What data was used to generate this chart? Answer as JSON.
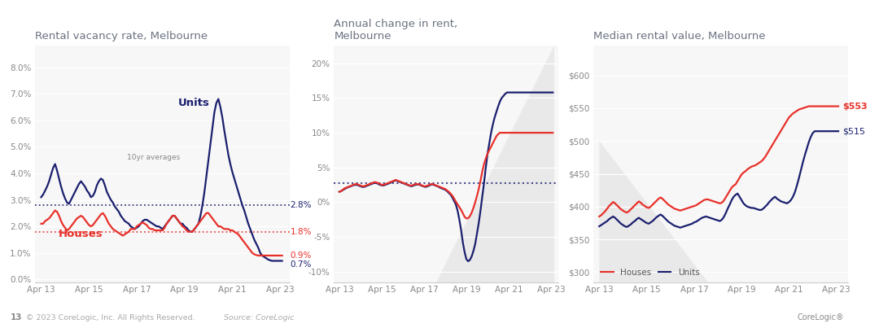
{
  "bg_color": "#ffffff",
  "chart_bg": "#f7f7f7",
  "title_color": "#6b7280",
  "navy": "#1a1f6e",
  "red": "#e8302a",
  "grey_line": "#cccccc",
  "chart1": {
    "title": "Rental vacancy rate, Melbourne",
    "ylim": [
      -0.001,
      0.088
    ],
    "yticks": [
      0.0,
      0.01,
      0.02,
      0.03,
      0.04,
      0.05,
      0.06,
      0.07,
      0.08
    ],
    "ytick_labels": [
      "0.0%",
      "1.0%",
      "2.0%",
      "3.0%",
      "4.0%",
      "5.0%",
      "6.0%",
      "7.0%",
      "8.0%"
    ],
    "avg_units": 0.028,
    "avg_houses": 0.018,
    "label_avg_units": "2.8%",
    "label_avg_houses": "1.8%",
    "label_end_red": "0.9%",
    "label_end_navy": "0.7%"
  },
  "chart2": {
    "title": "Annual change in rent,\nMelbourne",
    "ylim": [
      -0.115,
      0.225
    ],
    "yticks": [
      -0.1,
      -0.05,
      0.0,
      0.05,
      0.1,
      0.15,
      0.2
    ],
    "ytick_labels": [
      "-10%",
      "-5%",
      "0%",
      "5%",
      "10%",
      "15%",
      "20%"
    ],
    "avg_line": 0.028
  },
  "chart3": {
    "title": "Median rental value, Melbourne",
    "ylim": [
      285,
      645
    ],
    "yticks": [
      300,
      350,
      400,
      450,
      500,
      550,
      600
    ],
    "ytick_labels": [
      "$300",
      "$350",
      "$400",
      "$450",
      "$500",
      "$550",
      "$600"
    ],
    "label_houses_end": "$553",
    "label_units_end": "$515"
  },
  "x_ticks": [
    0,
    24,
    48,
    72,
    96,
    120
  ],
  "x_tick_labels": [
    "Apr 13",
    "Apr 15",
    "Apr 17",
    "Apr 19",
    "Apr 21",
    "Apr 23"
  ],
  "n_points": 122,
  "vac_units": [
    3.1,
    3.2,
    3.35,
    3.5,
    3.7,
    3.95,
    4.2,
    4.35,
    4.1,
    3.8,
    3.5,
    3.25,
    3.05,
    2.9,
    2.85,
    3.0,
    3.15,
    3.3,
    3.45,
    3.6,
    3.7,
    3.6,
    3.5,
    3.35,
    3.25,
    3.1,
    3.15,
    3.3,
    3.55,
    3.7,
    3.8,
    3.75,
    3.55,
    3.3,
    3.15,
    3.0,
    2.9,
    2.75,
    2.65,
    2.55,
    2.4,
    2.3,
    2.2,
    2.15,
    2.1,
    2.0,
    1.95,
    1.9,
    1.95,
    2.0,
    2.1,
    2.2,
    2.25,
    2.25,
    2.2,
    2.15,
    2.1,
    2.05,
    2.0,
    2.0,
    1.95,
    1.9,
    2.0,
    2.1,
    2.2,
    2.3,
    2.4,
    2.4,
    2.3,
    2.2,
    2.1,
    2.1,
    2.0,
    1.95,
    1.85,
    1.8,
    1.8,
    1.9,
    2.0,
    2.1,
    2.4,
    2.8,
    3.3,
    3.9,
    4.5,
    5.1,
    5.7,
    6.3,
    6.65,
    6.8,
    6.5,
    6.1,
    5.6,
    5.15,
    4.7,
    4.35,
    4.05,
    3.8,
    3.55,
    3.3,
    3.05,
    2.8,
    2.6,
    2.35,
    2.1,
    1.9,
    1.7,
    1.5,
    1.35,
    1.2,
    1.0,
    0.9,
    0.85,
    0.8,
    0.75,
    0.72,
    0.7,
    0.7,
    0.7,
    0.7,
    0.7,
    0.7
  ],
  "vac_houses": [
    2.1,
    2.1,
    2.2,
    2.25,
    2.3,
    2.4,
    2.5,
    2.6,
    2.55,
    2.4,
    2.2,
    2.05,
    1.95,
    1.85,
    1.9,
    2.0,
    2.1,
    2.2,
    2.3,
    2.35,
    2.4,
    2.35,
    2.25,
    2.15,
    2.05,
    2.0,
    2.05,
    2.15,
    2.25,
    2.35,
    2.45,
    2.5,
    2.4,
    2.25,
    2.1,
    2.0,
    1.9,
    1.85,
    1.8,
    1.75,
    1.7,
    1.65,
    1.7,
    1.75,
    1.8,
    1.9,
    1.9,
    1.9,
    2.0,
    2.05,
    2.1,
    2.15,
    2.1,
    2.05,
    1.95,
    1.9,
    1.9,
    1.85,
    1.85,
    1.85,
    1.85,
    1.85,
    1.95,
    2.1,
    2.2,
    2.3,
    2.4,
    2.4,
    2.3,
    2.2,
    2.1,
    2.0,
    1.95,
    1.85,
    1.8,
    1.8,
    1.8,
    1.9,
    2.0,
    2.1,
    2.2,
    2.3,
    2.4,
    2.5,
    2.5,
    2.4,
    2.3,
    2.2,
    2.1,
    2.0,
    2.0,
    1.95,
    1.9,
    1.9,
    1.9,
    1.85,
    1.85,
    1.8,
    1.75,
    1.7,
    1.6,
    1.5,
    1.4,
    1.3,
    1.2,
    1.1,
    1.0,
    0.95,
    0.92,
    0.9,
    0.9,
    0.9,
    0.9,
    0.9,
    0.9,
    0.9,
    0.9,
    0.9,
    0.9,
    0.9,
    0.9,
    0.9
  ],
  "rent_units": [
    1.5,
    1.6,
    1.75,
    1.9,
    2.05,
    2.15,
    2.25,
    2.35,
    2.45,
    2.5,
    2.5,
    2.4,
    2.3,
    2.2,
    2.2,
    2.3,
    2.4,
    2.5,
    2.6,
    2.7,
    2.8,
    2.75,
    2.65,
    2.5,
    2.45,
    2.4,
    2.5,
    2.6,
    2.7,
    2.8,
    2.95,
    3.05,
    3.15,
    3.05,
    2.95,
    2.85,
    2.75,
    2.65,
    2.55,
    2.45,
    2.35,
    2.3,
    2.4,
    2.5,
    2.55,
    2.55,
    2.45,
    2.35,
    2.25,
    2.2,
    2.3,
    2.4,
    2.55,
    2.55,
    2.45,
    2.35,
    2.25,
    2.1,
    2.0,
    1.9,
    1.8,
    1.6,
    1.35,
    1.1,
    0.7,
    0.2,
    -0.3,
    -1.2,
    -2.5,
    -4.0,
    -5.8,
    -7.2,
    -8.2,
    -8.5,
    -8.3,
    -7.8,
    -7.0,
    -6.0,
    -4.5,
    -3.0,
    -1.2,
    0.8,
    2.8,
    5.0,
    7.0,
    8.5,
    10.0,
    11.2,
    12.2,
    13.0,
    13.8,
    14.5,
    15.0,
    15.3,
    15.6,
    15.8,
    15.8,
    15.8,
    15.8,
    15.8,
    15.8,
    15.8,
    15.8,
    15.8,
    15.8,
    15.8,
    15.8,
    15.8,
    15.8,
    15.8,
    15.8,
    15.8,
    15.8,
    15.8,
    15.8,
    15.8,
    15.8,
    15.8,
    15.8,
    15.8,
    15.8,
    15.8
  ],
  "rent_houses": [
    1.5,
    1.6,
    1.8,
    2.0,
    2.1,
    2.2,
    2.3,
    2.4,
    2.5,
    2.6,
    2.6,
    2.5,
    2.4,
    2.3,
    2.3,
    2.4,
    2.5,
    2.6,
    2.7,
    2.8,
    2.9,
    2.85,
    2.75,
    2.65,
    2.5,
    2.5,
    2.6,
    2.7,
    2.8,
    2.9,
    3.0,
    3.1,
    3.2,
    3.1,
    3.0,
    2.9,
    2.8,
    2.7,
    2.6,
    2.5,
    2.4,
    2.4,
    2.5,
    2.6,
    2.6,
    2.6,
    2.5,
    2.4,
    2.3,
    2.3,
    2.4,
    2.5,
    2.6,
    2.6,
    2.5,
    2.4,
    2.3,
    2.2,
    2.1,
    2.0,
    1.9,
    1.7,
    1.5,
    1.25,
    0.95,
    0.55,
    0.1,
    -0.3,
    -0.7,
    -1.1,
    -1.6,
    -2.1,
    -2.35,
    -2.3,
    -2.0,
    -1.5,
    -0.8,
    0.0,
    0.9,
    1.9,
    3.1,
    4.4,
    5.5,
    6.3,
    7.0,
    7.5,
    8.0,
    8.5,
    9.0,
    9.5,
    9.8,
    10.0,
    10.0,
    10.0,
    10.0,
    10.0,
    10.0,
    10.0,
    10.0,
    10.0,
    10.0,
    10.0,
    10.0,
    10.0,
    10.0,
    10.0,
    10.0,
    10.0,
    10.0,
    10.0,
    10.0,
    10.0,
    10.0,
    10.0,
    10.0,
    10.0,
    10.0,
    10.0,
    10.0,
    10.0,
    10.0,
    10.0
  ],
  "med_houses": [
    385,
    387,
    390,
    393,
    397,
    401,
    404,
    407,
    405,
    402,
    399,
    396,
    394,
    392,
    391,
    393,
    396,
    399,
    402,
    405,
    408,
    406,
    403,
    401,
    399,
    398,
    400,
    403,
    406,
    409,
    412,
    414,
    412,
    409,
    406,
    403,
    401,
    399,
    397,
    396,
    395,
    394,
    395,
    396,
    397,
    398,
    399,
    400,
    401,
    402,
    404,
    406,
    408,
    410,
    411,
    411,
    410,
    409,
    408,
    407,
    406,
    405,
    406,
    409,
    414,
    419,
    424,
    429,
    432,
    434,
    439,
    444,
    449,
    452,
    454,
    457,
    459,
    461,
    462,
    463,
    465,
    467,
    469,
    472,
    476,
    481,
    486,
    491,
    496,
    501,
    506,
    511,
    516,
    521,
    526,
    531,
    536,
    539,
    542,
    544,
    546,
    548,
    549,
    550,
    551,
    552,
    553,
    553,
    553,
    553,
    553,
    553,
    553,
    553,
    553,
    553,
    553,
    553,
    553,
    553,
    553,
    553
  ],
  "med_units": [
    370,
    372,
    374,
    376,
    378,
    381,
    383,
    385,
    383,
    380,
    377,
    374,
    372,
    370,
    369,
    371,
    373,
    376,
    378,
    381,
    383,
    381,
    379,
    377,
    375,
    374,
    376,
    378,
    381,
    384,
    386,
    388,
    386,
    383,
    380,
    377,
    375,
    373,
    371,
    370,
    369,
    368,
    369,
    370,
    371,
    372,
    373,
    374,
    376,
    377,
    379,
    381,
    383,
    384,
    385,
    384,
    383,
    382,
    381,
    380,
    379,
    378,
    380,
    384,
    390,
    397,
    403,
    410,
    415,
    418,
    420,
    415,
    410,
    405,
    402,
    400,
    399,
    398,
    398,
    397,
    396,
    395,
    395,
    397,
    400,
    403,
    407,
    410,
    413,
    415,
    412,
    410,
    408,
    407,
    406,
    405,
    407,
    410,
    415,
    422,
    432,
    443,
    455,
    467,
    478,
    488,
    498,
    506,
    512,
    515,
    515,
    515,
    515,
    515,
    515,
    515,
    515,
    515,
    515,
    515,
    515,
    515
  ]
}
